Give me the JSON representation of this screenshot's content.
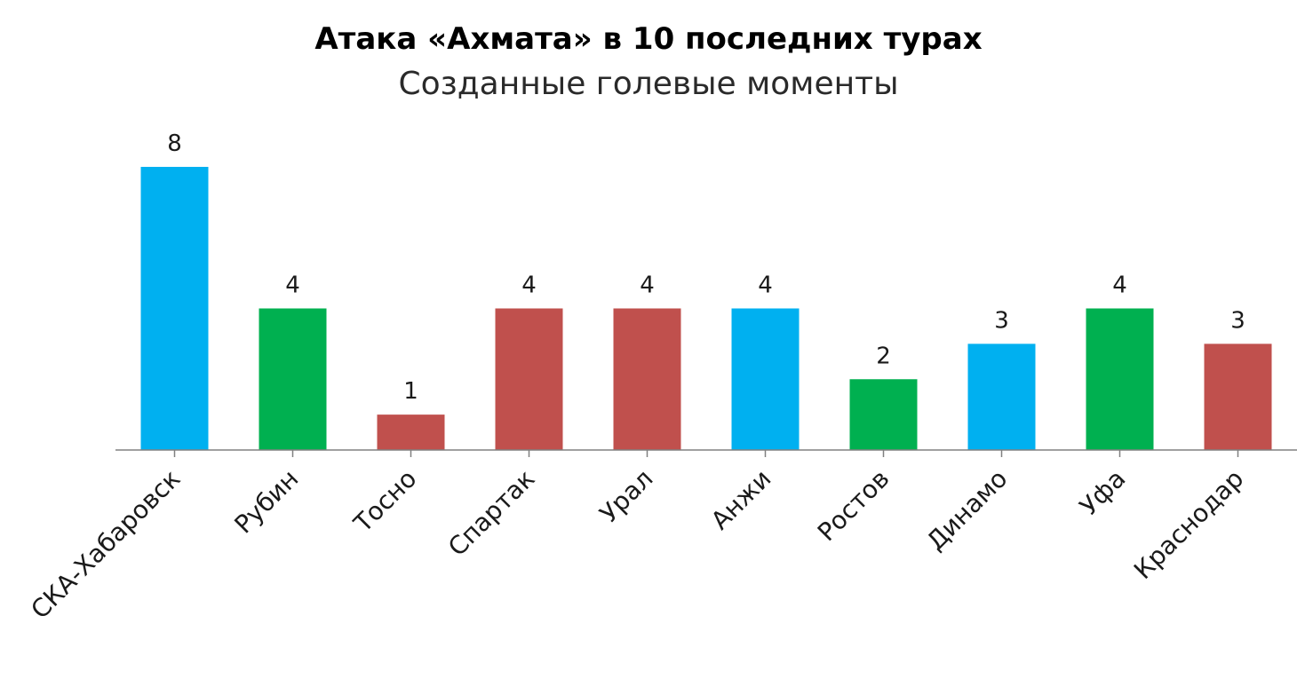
{
  "chart_data": {
    "type": "bar",
    "title": "Атака «Ахмата» в 10 последних турах",
    "subtitle": "Созданные голевые моменты",
    "xlabel": "",
    "ylabel": "",
    "categories": [
      "СКА-Хабаровск",
      "Рубин",
      "Тосно",
      "Спартак",
      "Урал",
      "Анжи",
      "Ростов",
      "Динамо",
      "Уфа",
      "Краснодар"
    ],
    "values": [
      8,
      4,
      1,
      4,
      4,
      4,
      2,
      3,
      4,
      3
    ],
    "value_labels": [
      "8",
      "4",
      "1",
      "4",
      "4",
      "4",
      "2",
      "3",
      "4",
      "3"
    ],
    "bar_colors": [
      "#00b0f0",
      "#00b050",
      "#c0504d",
      "#c0504d",
      "#c0504d",
      "#00b0f0",
      "#00b050",
      "#00b0f0",
      "#00b050",
      "#c0504d"
    ],
    "ylim": [
      0,
      8
    ],
    "grid": false,
    "legend": "none",
    "axis_color": "#808080"
  }
}
